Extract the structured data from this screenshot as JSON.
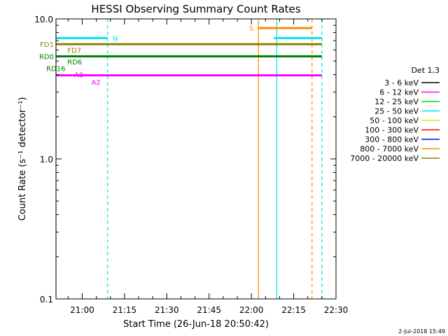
{
  "chart_data": {
    "type": "line",
    "title": "HESSI Observing Summary Count Rates",
    "xlabel": "Start Time (26-Jun-18 20:50:42)",
    "ylabel": "Count Rate (s⁻¹ detector⁻¹)",
    "yscale": "log",
    "ylim": [
      0.1,
      10.0
    ],
    "xlim": [
      "20:50:42",
      "22:30:00"
    ],
    "x_ticks": [
      "21:00",
      "21:15",
      "21:30",
      "21:45",
      "22:00",
      "22:15",
      "22:30"
    ],
    "y_ticks": [
      "0.1",
      "1.0",
      "10.0"
    ],
    "legend": {
      "placement": "right",
      "title": "Det 1,3",
      "entries": [
        {
          "label": "3 - 6 keV",
          "color": "#000000"
        },
        {
          "label": "6 - 12 keV",
          "color": "#ff00ff"
        },
        {
          "label": "12 - 25 keV",
          "color": "#00dd00"
        },
        {
          "label": "25 - 50 keV",
          "color": "#00e5e5"
        },
        {
          "label": "50 - 100 keV",
          "color": "#e5e500"
        },
        {
          "label": "100 - 300 keV",
          "color": "#ff0000"
        },
        {
          "label": "300 - 800 keV",
          "color": "#0000ff"
        },
        {
          "label": "800 - 7000 keV",
          "color": "#ff8c00"
        },
        {
          "label": "7000 - 20000 keV",
          "color": "#8b8000"
        }
      ]
    },
    "flag_bars": [
      {
        "label": "FD1",
        "color": "#8b8000",
        "y": 6.6,
        "segments": [
          [
            "20:50:42",
            "22:25:00"
          ]
        ]
      },
      {
        "label": "RD0",
        "color": "#008000",
        "y": 5.4,
        "segments": [
          [
            "20:50:42",
            "22:25:00"
          ]
        ]
      },
      {
        "label": "A0",
        "color": "#ff00ff",
        "y": 3.95,
        "segments": [
          [
            "20:50:42",
            "22:25:00"
          ]
        ]
      },
      {
        "label": "N",
        "color": "#00e5e5",
        "y": 7.3,
        "segments": [
          [
            "20:50:42",
            "21:09:00"
          ],
          [
            "22:08:00",
            "22:25:00"
          ]
        ]
      },
      {
        "label": "S",
        "color": "#ff8c00",
        "y": 8.6,
        "segments": [
          [
            "22:02:30",
            "22:21:30"
          ]
        ]
      }
    ],
    "small_labels": [
      {
        "text": "FD7",
        "color": "#8b8000",
        "x": "20:53:30",
        "y": 6.0
      },
      {
        "text": "RD6",
        "color": "#008000",
        "x": "20:53:30",
        "y": 4.95
      },
      {
        "text": "RD16",
        "color": "#008000",
        "x": "20:50:42",
        "y": 4.45
      },
      {
        "text": "A2",
        "color": "#ff00ff",
        "x": "21:02:00",
        "y": 3.55
      }
    ],
    "vlines": [
      {
        "x": "20:50:42",
        "color": "#00e5e5",
        "style": "solid"
      },
      {
        "x": "21:09:00",
        "color": "#00e5e5",
        "style": "dashed"
      },
      {
        "x": "22:02:30",
        "color": "#ff8c00",
        "style": "solid"
      },
      {
        "x": "22:09:00",
        "color": "#00e5e5",
        "style": "solid"
      },
      {
        "x": "22:21:30",
        "color": "#ff8c00",
        "style": "dashed"
      },
      {
        "x": "22:25:00",
        "color": "#00e5e5",
        "style": "dashed"
      }
    ]
  },
  "footer": {
    "date_stamp": "2-Jul-2018 15:49"
  }
}
